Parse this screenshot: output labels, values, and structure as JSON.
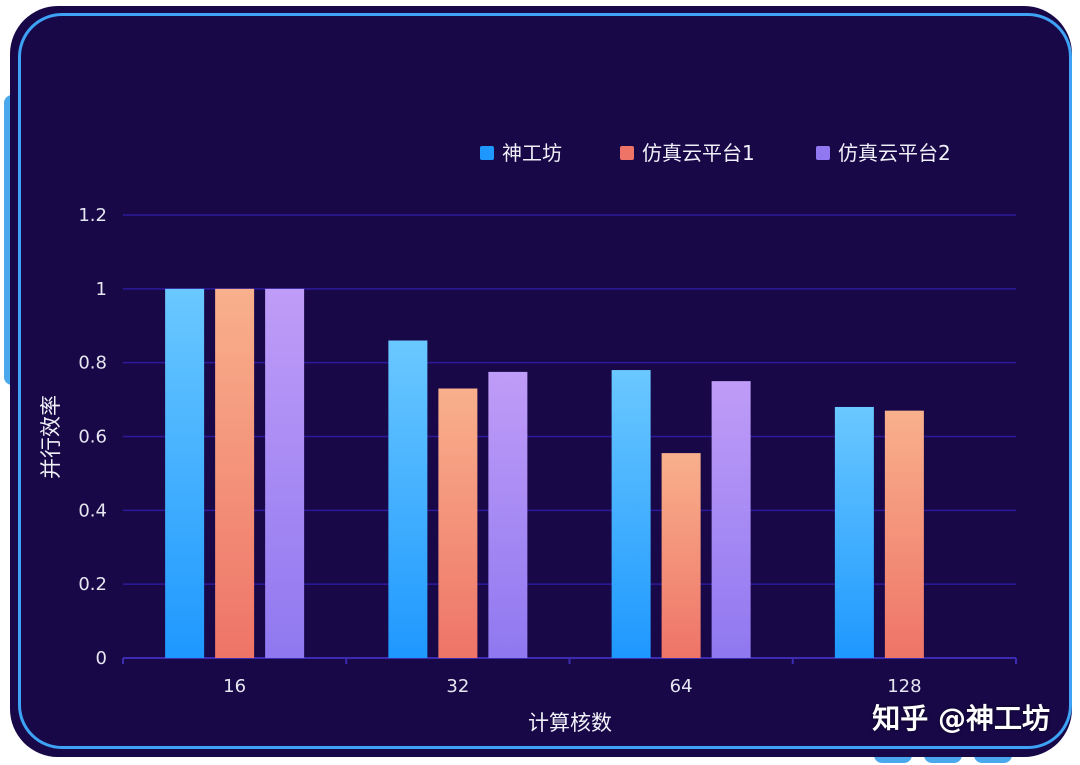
{
  "colors": {
    "background": "#180848",
    "frame": "#3ea2f5",
    "grid": "#2d1a9a",
    "series": [
      {
        "top": "#6ac8ff",
        "bottom": "#1e98ff"
      },
      {
        "top": "#f9b08c",
        "bottom": "#ee7468"
      },
      {
        "top": "#bf9cf7",
        "bottom": "#8f78f0"
      }
    ]
  },
  "watermark": "知乎 @神工坊",
  "chart_data": {
    "type": "bar",
    "title": "",
    "xlabel": "计算核数",
    "ylabel": "并行效率",
    "categories": [
      "16",
      "32",
      "64",
      "128"
    ],
    "ylim": [
      0,
      1.2
    ],
    "yticks": [
      "0",
      "0.2",
      "0.4",
      "0.6",
      "0.8",
      "1",
      "1.2"
    ],
    "ytick_values": [
      0,
      0.2,
      0.4,
      0.6,
      0.8,
      1,
      1.2
    ],
    "grid": true,
    "legend_position": "top-right",
    "series": [
      {
        "name": "神工坊",
        "values": [
          1.0,
          0.86,
          0.78,
          0.68
        ]
      },
      {
        "name": "仿真云平台1",
        "values": [
          1.0,
          0.73,
          0.555,
          0.67
        ]
      },
      {
        "name": "仿真云平台2",
        "values": [
          1.0,
          0.775,
          0.75,
          null
        ]
      }
    ]
  }
}
